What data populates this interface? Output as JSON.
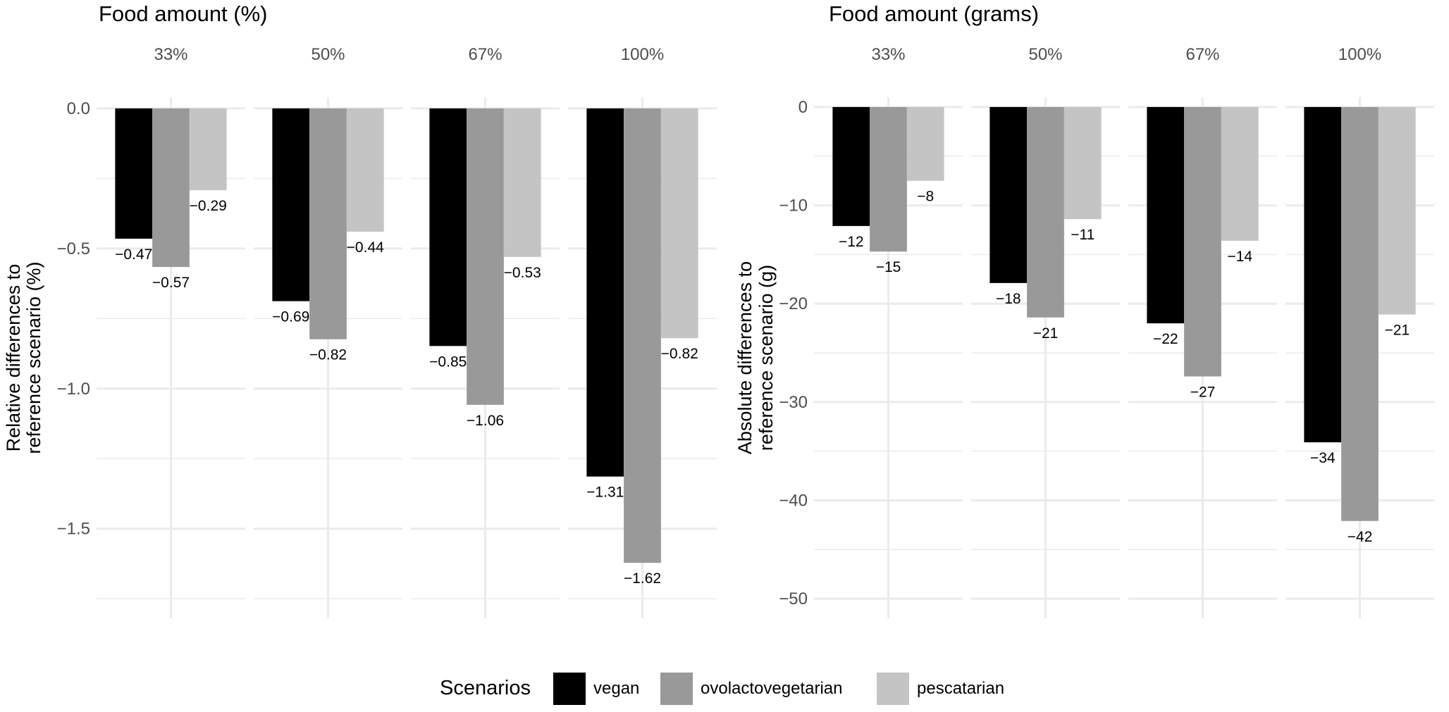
{
  "chart_data": [
    {
      "type": "bar",
      "title": "Food amount (%)",
      "xlabel": "",
      "ylabel_lines": [
        "Relative differences to",
        "reference scenario (%)"
      ],
      "ylim": [
        -1.82,
        0.04
      ],
      "yticks": [
        0.0,
        -0.5,
        -1.0,
        -1.5
      ],
      "ytick_labels": [
        "0.0",
        "−0.5",
        "−1.0",
        "−1.5"
      ],
      "minor_gridlines": [
        -0.25,
        -0.75,
        -1.25,
        -1.75
      ],
      "facets": [
        "33%",
        "50%",
        "67%",
        "100%"
      ],
      "series": [
        {
          "name": "vegan",
          "values": [
            -0.465,
            -0.688,
            -0.848,
            -1.314
          ],
          "labels": [
            "−0.47",
            "−0.69",
            "−0.85",
            "−1.31"
          ]
        },
        {
          "name": "ovolactovegetarian",
          "values": [
            -0.566,
            -0.824,
            -1.058,
            -1.622
          ],
          "labels": [
            "−0.57",
            "−0.82",
            "−1.06",
            "−1.62"
          ]
        },
        {
          "name": "pescatarian",
          "values": [
            -0.292,
            -0.44,
            -0.53,
            -0.82
          ],
          "labels": [
            "−0.29",
            "−0.44",
            "−0.53",
            "−0.82"
          ]
        }
      ]
    },
    {
      "type": "bar",
      "title": "Food amount (grams)",
      "xlabel": "",
      "ylabel_lines": [
        "Absolute differences to",
        "reference scenario (g)"
      ],
      "ylim": [
        -52,
        1
      ],
      "yticks": [
        0,
        -10,
        -20,
        -30,
        -40,
        -50
      ],
      "ytick_labels": [
        "0",
        "−10",
        "−20",
        "−30",
        "−40",
        "−50"
      ],
      "minor_gridlines": [
        -5,
        -15,
        -25,
        -35,
        -45
      ],
      "facets": [
        "33%",
        "50%",
        "67%",
        "100%"
      ],
      "series": [
        {
          "name": "vegan",
          "values": [
            -12.1,
            -17.9,
            -22.0,
            -34.1
          ],
          "labels": [
            "−12",
            "−18",
            "−22",
            "−34"
          ]
        },
        {
          "name": "ovolactovegetarian",
          "values": [
            -14.7,
            -21.4,
            -27.4,
            -42.1
          ],
          "labels": [
            "−15",
            "−21",
            "−27",
            "−42"
          ]
        },
        {
          "name": "pescatarian",
          "values": [
            -7.5,
            -11.4,
            -13.6,
            -21.1
          ],
          "labels": [
            "−8",
            "−11",
            "−14",
            "−21"
          ]
        }
      ]
    }
  ],
  "legend": {
    "title": "Scenarios",
    "position": "bottom",
    "items": [
      {
        "name": "vegan",
        "color": "#000000"
      },
      {
        "name": "ovolactovegetarian",
        "color": "#999999"
      },
      {
        "name": "pescatarian",
        "color": "#c4c4c4"
      }
    ]
  },
  "colors": {
    "vegan": "#000000",
    "ovolactovegetarian": "#999999",
    "pescatarian": "#c4c4c4",
    "grid": "#ebebeb",
    "axis_text": "#4d4d4d",
    "text": "#000000"
  }
}
